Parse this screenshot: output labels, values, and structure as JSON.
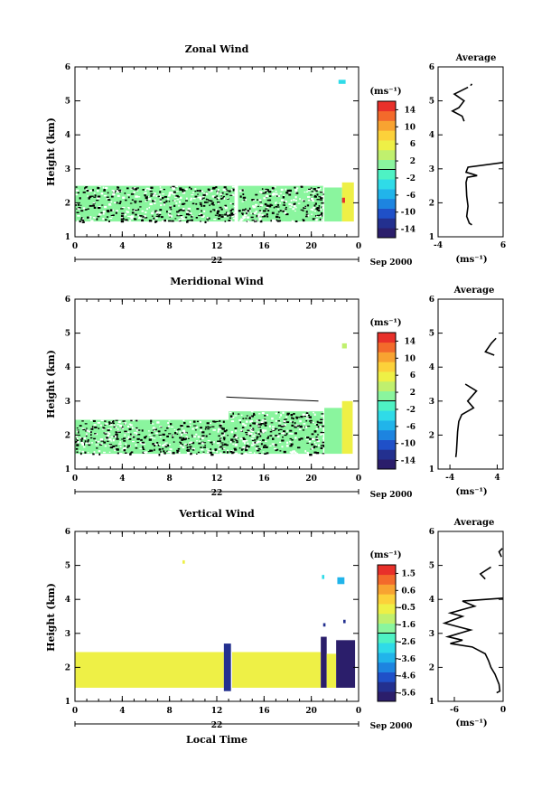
{
  "figure": {
    "xlabel": "Local Time",
    "date_suffix": "Sep 2000",
    "day_label": "22",
    "colorbar_unit": "(ms⁻¹)",
    "average_title": "Average",
    "average_xunit": "(ms⁻¹)"
  },
  "chart_data": [
    {
      "type": "heatmap",
      "title": "Zonal Wind",
      "ylabel": "Height (km)",
      "xlim": [
        0,
        24
      ],
      "ylim": [
        1,
        6
      ],
      "x_ticks": [
        "0",
        "4",
        "8",
        "12",
        "16",
        "20",
        "0"
      ],
      "y_ticks": [
        "1",
        "2",
        "3",
        "4",
        "5",
        "6"
      ],
      "colorbar": {
        "ticks": [
          "14",
          "10",
          "6",
          "2",
          "-2",
          "-6",
          "-10",
          "-14"
        ],
        "range": [
          -16,
          16
        ]
      },
      "blocks": [
        {
          "x": [
            0,
            13.5
          ],
          "y": [
            1.45,
            2.5
          ],
          "value": 0.5,
          "kind": "speckle"
        },
        {
          "x": [
            13.8,
            21.0
          ],
          "y": [
            1.45,
            2.5
          ],
          "value": 1.0,
          "kind": "speckle"
        },
        {
          "x": [
            21.1,
            22.6
          ],
          "y": [
            1.45,
            2.45
          ],
          "value": 0.0,
          "kind": "solid"
        },
        {
          "x": [
            22.6,
            23.6
          ],
          "y": [
            1.45,
            2.6
          ],
          "value": 5.0,
          "kind": "solid"
        },
        {
          "x": [
            22.3,
            22.9
          ],
          "y": [
            5.5,
            5.62
          ],
          "value": -4.5,
          "kind": "solid"
        },
        {
          "x": [
            22.6,
            22.85
          ],
          "y": [
            2.0,
            2.15
          ],
          "value": 14.5,
          "kind": "solid"
        }
      ],
      "average": {
        "xlim": [
          -4,
          6
        ],
        "x_ticks": [
          "-4",
          "6"
        ],
        "segments": [
          [
            [
              1.0,
              5.45
            ],
            [
              1.2,
              5.5
            ]
          ],
          [
            [
              0.6,
              5.4
            ],
            [
              -1.5,
              5.2
            ],
            [
              0.0,
              5.0
            ],
            [
              -0.8,
              4.8
            ],
            [
              -1.8,
              4.7
            ],
            [
              -0.3,
              4.55
            ],
            [
              0.0,
              4.4
            ]
          ],
          [
            [
              6.5,
              3.2
            ],
            [
              0.6,
              3.05
            ],
            [
              0.3,
              2.9
            ],
            [
              1.2,
              2.85
            ],
            [
              2.0,
              2.8
            ],
            [
              0.5,
              2.75
            ],
            [
              0.3,
              2.6
            ],
            [
              0.4,
              2.2
            ],
            [
              0.6,
              1.9
            ],
            [
              0.4,
              1.6
            ],
            [
              0.8,
              1.4
            ],
            [
              1.2,
              1.35
            ]
          ]
        ]
      }
    },
    {
      "type": "heatmap",
      "title": "Meridional Wind",
      "ylabel": "Height (km)",
      "xlim": [
        0,
        24
      ],
      "ylim": [
        1,
        6
      ],
      "x_ticks": [
        "0",
        "4",
        "8",
        "12",
        "16",
        "20",
        "0"
      ],
      "y_ticks": [
        "1",
        "2",
        "3",
        "4",
        "5",
        "6"
      ],
      "colorbar": {
        "ticks": [
          "14",
          "10",
          "6",
          "2",
          "-2",
          "-6",
          "-10",
          "-14"
        ],
        "range": [
          -16,
          16
        ]
      },
      "blocks": [
        {
          "x": [
            0,
            13.0
          ],
          "y": [
            1.45,
            2.45
          ],
          "value": 0.5,
          "kind": "speckle"
        },
        {
          "x": [
            13.0,
            21.0
          ],
          "y": [
            1.45,
            2.7
          ],
          "value": 1.0,
          "kind": "speckle"
        },
        {
          "x": [
            21.1,
            22.6
          ],
          "y": [
            1.45,
            2.8
          ],
          "value": 0.5,
          "kind": "solid"
        },
        {
          "x": [
            22.6,
            23.5
          ],
          "y": [
            1.45,
            3.0
          ],
          "value": 5.0,
          "kind": "solid"
        },
        {
          "x": [
            22.6,
            23.0
          ],
          "y": [
            4.55,
            4.7
          ],
          "value": 4.0,
          "kind": "solid"
        }
      ],
      "lines": [
        [
          [
            12.8,
            3.12
          ],
          [
            20.6,
            3.0
          ]
        ]
      ],
      "average": {
        "xlim": [
          -6,
          5
        ],
        "x_ticks": [
          "-4",
          "4"
        ],
        "segments": [
          [
            [
              3.8,
              4.85
            ],
            [
              3.0,
              4.7
            ],
            [
              2.0,
              4.45
            ],
            [
              3.5,
              4.35
            ]
          ],
          [
            [
              -1.4,
              3.5
            ],
            [
              0.5,
              3.3
            ],
            [
              -1.0,
              3.0
            ],
            [
              0.0,
              2.8
            ],
            [
              -2.0,
              2.6
            ],
            [
              -2.5,
              2.4
            ],
            [
              -2.7,
              2.1
            ],
            [
              -2.8,
              1.8
            ],
            [
              -2.9,
              1.5
            ],
            [
              -3.0,
              1.35
            ]
          ]
        ]
      }
    },
    {
      "type": "heatmap",
      "title": "Vertical Wind",
      "ylabel": "Height (km)",
      "xlim": [
        0,
        24
      ],
      "ylim": [
        1,
        6
      ],
      "x_ticks": [
        "0",
        "4",
        "8",
        "12",
        "16",
        "20",
        "0"
      ],
      "y_ticks": [
        "1",
        "2",
        "3",
        "4",
        "5",
        "6"
      ],
      "colorbar": {
        "ticks": [
          "1.5",
          "0.6",
          "-0.5",
          "-1.6",
          "-2.6",
          "-3.6",
          "-4.6",
          "-5.6"
        ],
        "range": [
          -6.1,
          2.1
        ]
      },
      "blocks": [
        {
          "x": [
            0,
            12.6
          ],
          "y": [
            1.4,
            2.45
          ],
          "value": -0.6,
          "kind": "solid"
        },
        {
          "x": [
            12.6,
            13.2
          ],
          "y": [
            1.3,
            2.7
          ],
          "value": -5.3,
          "kind": "solid"
        },
        {
          "x": [
            13.3,
            20.8
          ],
          "y": [
            1.4,
            2.45
          ],
          "value": -0.6,
          "kind": "solid"
        },
        {
          "x": [
            20.8,
            21.3
          ],
          "y": [
            1.4,
            2.9
          ],
          "value": -5.6,
          "kind": "solid"
        },
        {
          "x": [
            21.3,
            22.1
          ],
          "y": [
            1.4,
            2.4
          ],
          "value": -0.7,
          "kind": "solid"
        },
        {
          "x": [
            22.1,
            23.7
          ],
          "y": [
            1.4,
            2.8
          ],
          "value": -5.6,
          "kind": "solid"
        },
        {
          "x": [
            9.1,
            9.3
          ],
          "y": [
            5.05,
            5.15
          ],
          "value": -0.8,
          "kind": "solid"
        },
        {
          "x": [
            20.9,
            21.1
          ],
          "y": [
            4.6,
            4.72
          ],
          "value": -3.1,
          "kind": "solid"
        },
        {
          "x": [
            22.2,
            22.8
          ],
          "y": [
            4.45,
            4.65
          ],
          "value": -3.3,
          "kind": "solid"
        },
        {
          "x": [
            21.0,
            21.2
          ],
          "y": [
            3.2,
            3.3
          ],
          "value": -5.3,
          "kind": "solid"
        },
        {
          "x": [
            22.7,
            22.9
          ],
          "y": [
            3.3,
            3.4
          ],
          "value": -5.3,
          "kind": "solid"
        }
      ],
      "average": {
        "xlim": [
          -8,
          0
        ],
        "x_ticks": [
          "-6",
          "0"
        ],
        "segments": [
          [
            [
              -0.1,
              5.5
            ],
            [
              -0.5,
              5.4
            ],
            [
              -0.2,
              5.25
            ]
          ],
          [
            [
              -1.5,
              4.95
            ],
            [
              -2.8,
              4.75
            ],
            [
              -2.2,
              4.6
            ]
          ],
          [
            [
              0.8,
              4.05
            ],
            [
              -5.0,
              3.95
            ],
            [
              -3.5,
              3.8
            ],
            [
              -6.5,
              3.6
            ],
            [
              -5.0,
              3.5
            ],
            [
              -7.2,
              3.3
            ],
            [
              -4.0,
              3.1
            ],
            [
              -6.8,
              2.9
            ],
            [
              -5.0,
              2.8
            ],
            [
              -6.5,
              2.7
            ],
            [
              -3.8,
              2.6
            ],
            [
              -2.2,
              2.4
            ],
            [
              -1.8,
              2.2
            ],
            [
              -1.5,
              2.0
            ],
            [
              -1.0,
              1.8
            ],
            [
              -0.5,
              1.5
            ],
            [
              -0.4,
              1.3
            ],
            [
              -0.8,
              1.25
            ]
          ]
        ]
      }
    }
  ]
}
